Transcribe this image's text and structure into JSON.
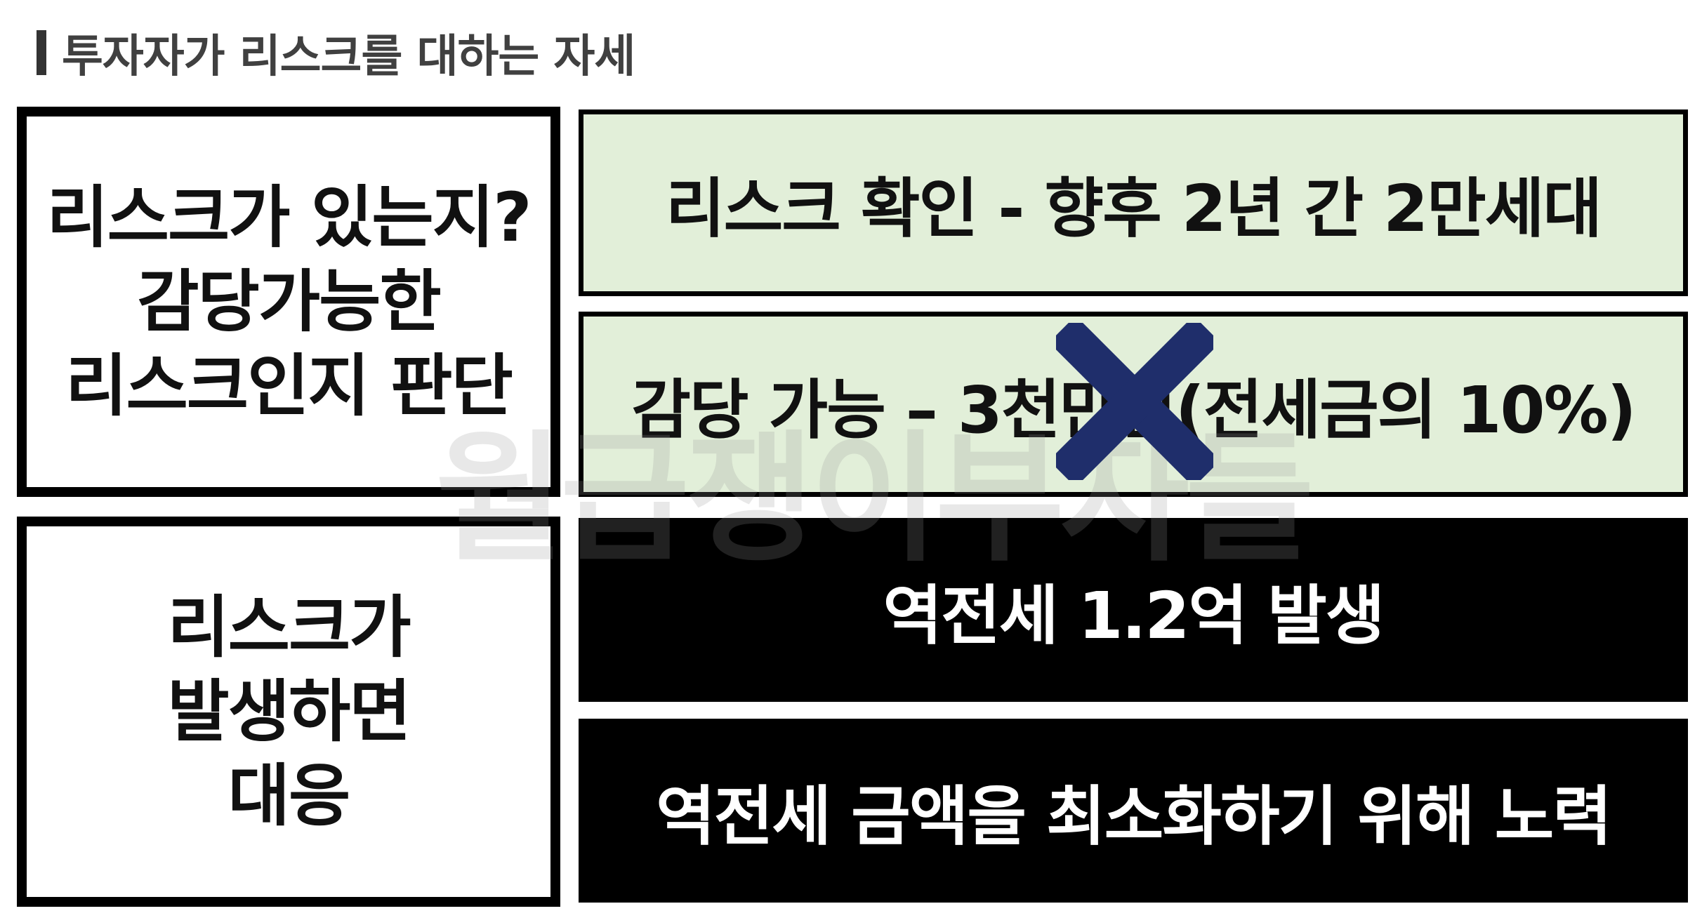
{
  "title": "투자자가 리스크를 대하는 자세",
  "left_top": {
    "lines": [
      "리스크가 있는지?",
      "감당가능한",
      "리스크인지 판단"
    ]
  },
  "left_bottom": {
    "lines": [
      "리스크가",
      "발생하면",
      "대응"
    ]
  },
  "green_top": "리스크 확인 - 향후 2년 간 2만세대",
  "green_bottom": "감당 가능 – 3천만원(전세금의 10%)",
  "black_top": "역전세 1.2억 발생",
  "black_bottom": "역전세 금액을 최소화하기 위해 노력",
  "watermark": "월급쟁이부자들",
  "colors": {
    "green_fill": "#e2efd9",
    "x_mark": "#1f2e6b",
    "title_text": "#404040"
  },
  "icons": {
    "cross_out": "x-mark-icon"
  }
}
